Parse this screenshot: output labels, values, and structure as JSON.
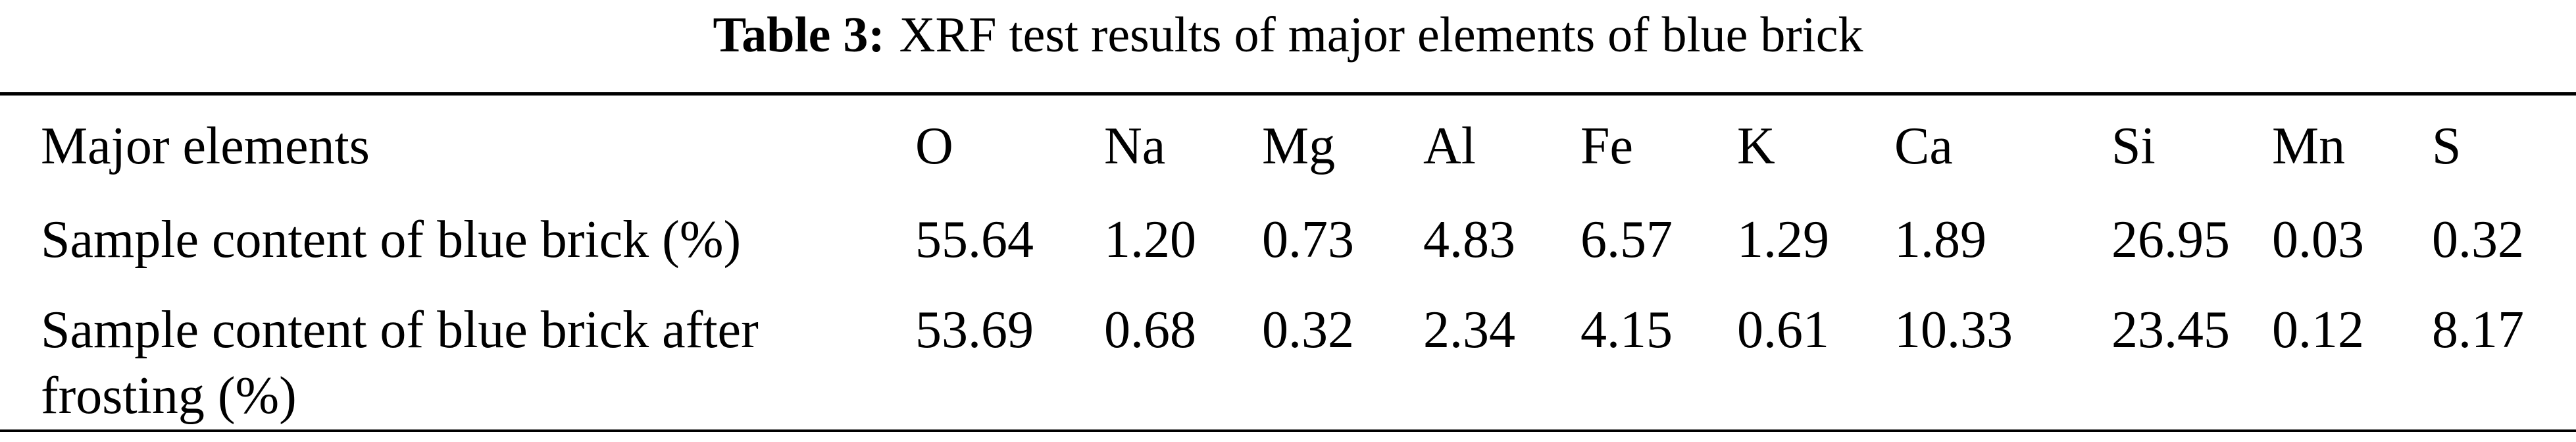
{
  "title": {
    "label": "Table 3:",
    "text": "XRF test results of major elements of blue brick"
  },
  "table": {
    "header": [
      "Major elements",
      "O",
      "Na",
      "Mg",
      "Al",
      "Fe",
      "K",
      "Ca",
      "Si",
      "Mn",
      "S"
    ],
    "rows": [
      [
        "Sample content of blue brick (%)",
        "55.64",
        "1.20",
        "0.73",
        "4.83",
        "6.57",
        "1.29",
        "1.89",
        "26.95",
        "0.03",
        "0.32"
      ],
      [
        "Sample content of blue brick after frosting (%)",
        "53.69",
        "0.68",
        "0.32",
        "2.34",
        "4.15",
        "0.61",
        "10.33",
        "23.45",
        "0.12",
        "8.17"
      ]
    ]
  }
}
